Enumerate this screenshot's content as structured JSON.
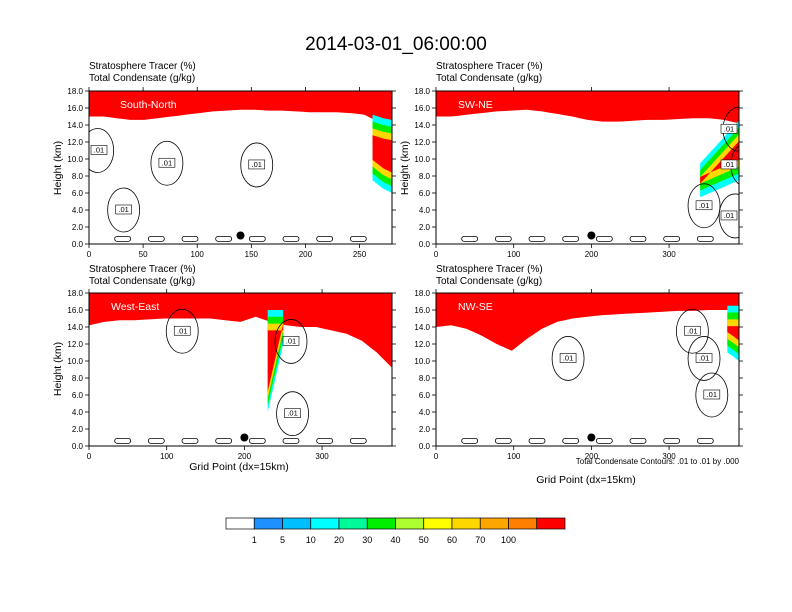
{
  "figure": {
    "title": "2014-03-01_06:00:00",
    "footnote": "Total Condensate Contours: .01 to .01 by .000",
    "colors": {
      "scale": [
        "#ffffff",
        "#1e90ff",
        "#00bfff",
        "#00ffff",
        "#00fa9a",
        "#00ee00",
        "#adff2f",
        "#ffff00",
        "#ffd700",
        "#ffa500",
        "#ff7f00",
        "#ff0000"
      ],
      "contour": "#000000",
      "marker": "#000000",
      "frame": "#000000"
    }
  },
  "chart_data": [
    {
      "type": "heatmap",
      "region": "South-North",
      "title_lines": [
        "Stratosphere Tracer   (%)",
        "Total Condensate   (g/kg)"
      ],
      "xlabel": "",
      "ylabel": "Height (km)",
      "xlim": [
        0,
        280
      ],
      "ylim": [
        0,
        18
      ],
      "xticks": [
        0,
        50,
        100,
        150,
        200,
        250
      ],
      "yticks": [
        0,
        2,
        4,
        6,
        8,
        10,
        12,
        14,
        16,
        18
      ],
      "ytick_labels": [
        "0.0",
        "2.0",
        "4.0",
        "6.0",
        "8.0",
        "10.0",
        "12.0",
        "14.0",
        "16.0",
        "18.0"
      ],
      "tracer_base_km": [
        15.0,
        15.0,
        14.8,
        14.6,
        14.6,
        14.8,
        15.0,
        15.2,
        15.4,
        15.6,
        15.7,
        15.8,
        15.8,
        15.7,
        15.7,
        15.6,
        15.5,
        15.5,
        15.5,
        15.4,
        15.2,
        14.4,
        13.8
      ],
      "tracer_intrusion": {
        "x": [
          262,
          272,
          280
        ],
        "y_min": [
          7.5,
          6.5,
          6.0
        ],
        "y_max": [
          15.2,
          14.8,
          14.6
        ]
      },
      "contour_labels": [
        {
          "text": ".01",
          "x": 8,
          "y": 11.0
        },
        {
          "text": ".01",
          "x": 72,
          "y": 9.5
        },
        {
          "text": ".01",
          "x": 155,
          "y": 9.3
        },
        {
          "text": ".01",
          "x": 32,
          "y": 4.0
        }
      ],
      "marker": {
        "x": 140,
        "y": 1.0
      }
    },
    {
      "type": "heatmap",
      "region": "SW-NE",
      "title_lines": [
        "Stratosphere Tracer   (%)",
        "Total Condensate   (g/kg)"
      ],
      "xlabel": "",
      "ylabel": "Height (km)",
      "xlim": [
        0,
        390
      ],
      "ylim": [
        0,
        18
      ],
      "xticks": [
        0,
        100,
        200,
        300
      ],
      "yticks": [
        0,
        2,
        4,
        6,
        8,
        10,
        12,
        14,
        16,
        18
      ],
      "ytick_labels": [
        "0.0",
        "2.0",
        "4.0",
        "6.0",
        "8.0",
        "10.0",
        "12.0",
        "14.0",
        "16.0",
        "18.0"
      ],
      "tracer_base_km": [
        15.0,
        15.0,
        15.2,
        15.4,
        15.6,
        15.7,
        15.8,
        15.6,
        15.3,
        15.0,
        14.6,
        14.4,
        14.4,
        14.5,
        14.6,
        14.6,
        14.7,
        14.8,
        14.8,
        14.6,
        14.2
      ],
      "tracer_intrusion": {
        "x": [
          340,
          365,
          390
        ],
        "y_min": [
          5.5,
          6.5,
          7.5
        ],
        "y_max": [
          9.5,
          12.0,
          14.5
        ]
      },
      "contour_labels": [
        {
          "text": ".01",
          "x": 390,
          "y": 13.5
        },
        {
          "text": ".01",
          "x": 400,
          "y": 9.3
        },
        {
          "text": ".01",
          "x": 345,
          "y": 4.5
        },
        {
          "text": ".01",
          "x": 385,
          "y": 3.3
        }
      ],
      "marker": {
        "x": 200,
        "y": 1.0
      }
    },
    {
      "type": "heatmap",
      "region": "West-East",
      "title_lines": [
        "Stratosphere Tracer   (%)",
        "Total Condensate   (g/kg)"
      ],
      "xlabel": "Grid Point (dx=15km)",
      "ylabel": "Height (km)",
      "xlim": [
        0,
        390
      ],
      "ylim": [
        0,
        18
      ],
      "xticks": [
        0,
        100,
        200,
        300
      ],
      "yticks": [
        0,
        2,
        4,
        6,
        8,
        10,
        12,
        14,
        16,
        18
      ],
      "ytick_labels": [
        "0.0",
        "2.0",
        "4.0",
        "6.0",
        "8.0",
        "10.0",
        "12.0",
        "14.0",
        "16.0",
        "18.0"
      ],
      "tracer_base_km": [
        14.2,
        14.6,
        14.8,
        14.8,
        14.9,
        15.0,
        15.0,
        15.0,
        15.0,
        14.8,
        14.6,
        15.2,
        14.6,
        14.2,
        14.0,
        14.0,
        13.6,
        13.2,
        12.4,
        11.0,
        9.2
      ],
      "tracer_intrusion": {
        "x": [
          230,
          240,
          250
        ],
        "y_min": [
          4.0,
          8.0,
          12.0
        ],
        "y_max": [
          16.0,
          16.0,
          16.0
        ]
      },
      "contour_labels": [
        {
          "text": ".01",
          "x": 120,
          "y": 13.5
        },
        {
          "text": ".01",
          "x": 260,
          "y": 12.3
        },
        {
          "text": ".01",
          "x": 262,
          "y": 3.8
        }
      ],
      "marker": {
        "x": 200,
        "y": 1.0
      }
    },
    {
      "type": "heatmap",
      "region": "NW-SE",
      "title_lines": [
        "Stratosphere Tracer   (%)",
        "Total Condensate   (g/kg)"
      ],
      "xlabel": "Grid Point (dx=15km)",
      "ylabel": "",
      "xlim": [
        0,
        390
      ],
      "ylim": [
        0,
        18
      ],
      "xticks": [
        0,
        100,
        200,
        300
      ],
      "yticks": [
        0,
        2,
        4,
        6,
        8,
        10,
        12,
        14,
        16,
        18
      ],
      "ytick_labels": [
        "0.0",
        "2.0",
        "4.0",
        "6.0",
        "8.0",
        "10.0",
        "12.0",
        "14.0",
        "16.0",
        "18.0"
      ],
      "tracer_base_km": [
        14.0,
        14.2,
        13.8,
        13.0,
        12.0,
        11.2,
        12.6,
        13.8,
        14.6,
        15.0,
        15.2,
        15.4,
        15.5,
        15.6,
        15.7,
        15.8,
        15.9,
        15.9,
        16.0,
        16.0,
        16.0
      ],
      "tracer_intrusion": {
        "x": [
          375,
          383,
          390
        ],
        "y_min": [
          11.0,
          10.5,
          10.0
        ],
        "y_max": [
          16.5,
          16.5,
          16.5
        ]
      },
      "contour_labels": [
        {
          "text": ".01",
          "x": 330,
          "y": 13.5
        },
        {
          "text": ".01",
          "x": 345,
          "y": 10.3
        },
        {
          "text": ".01",
          "x": 170,
          "y": 10.3
        },
        {
          "text": ".01",
          "x": 355,
          "y": 6.0
        }
      ],
      "marker": {
        "x": 200,
        "y": 1.0
      }
    }
  ],
  "colorbar": {
    "labels": [
      "1",
      "5",
      "10",
      "20",
      "30",
      "40",
      "50",
      "60",
      "70",
      "100"
    ]
  }
}
